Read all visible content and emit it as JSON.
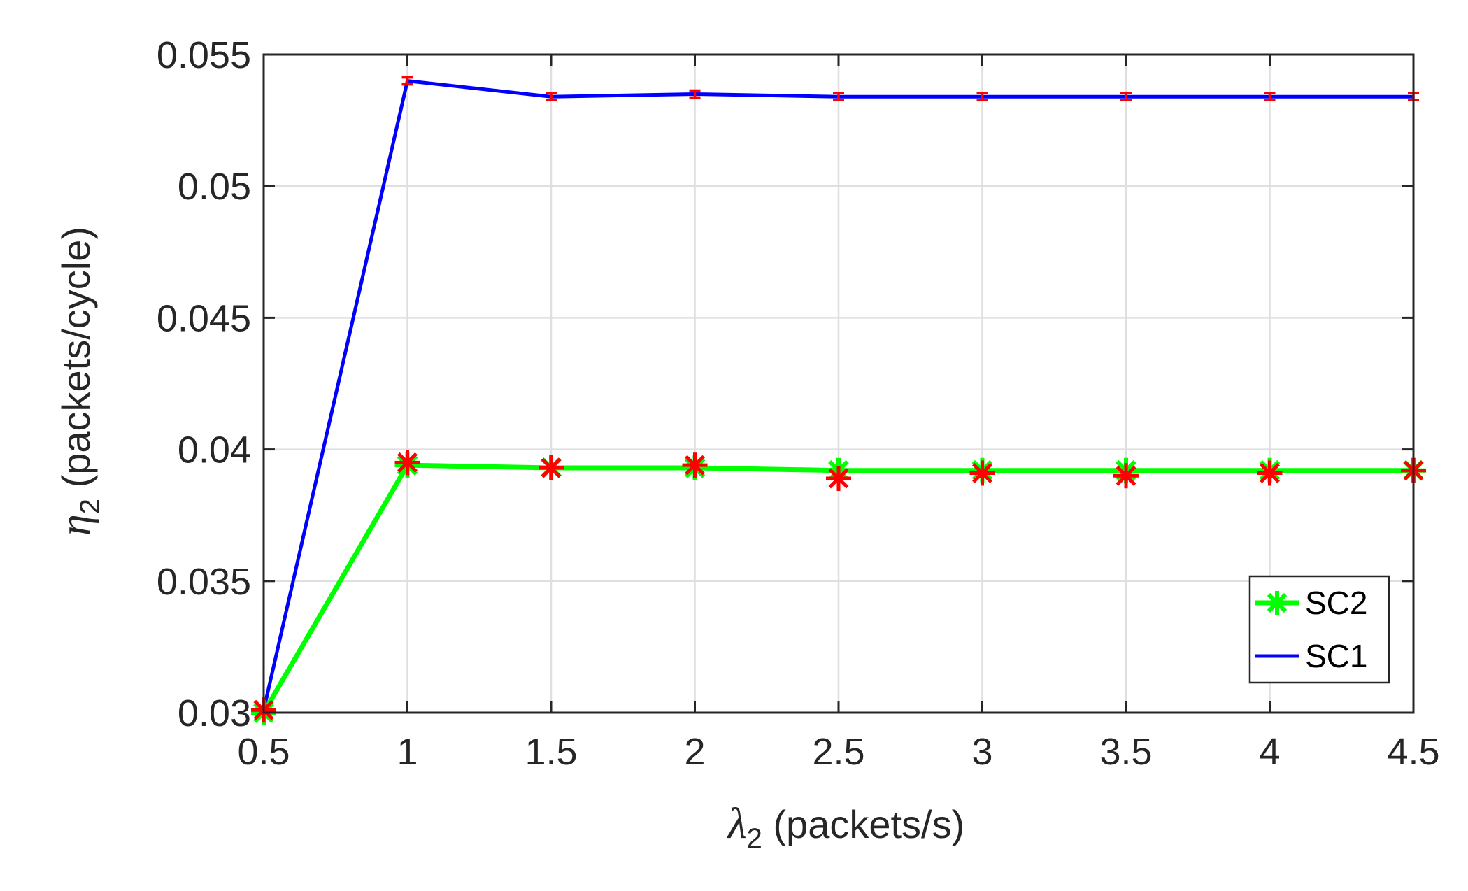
{
  "chart_data": {
    "type": "line",
    "xlabel": {
      "symbol": "λ",
      "subscript": "2",
      "unit": " (packets/s)"
    },
    "ylabel": {
      "symbol": "η",
      "subscript": "2",
      "unit": " (packets/cycle)"
    },
    "xlim": [
      0.5,
      4.5
    ],
    "ylim": [
      0.03,
      0.055
    ],
    "x_ticks": [
      0.5,
      1,
      1.5,
      2,
      2.5,
      3,
      3.5,
      4,
      4.5
    ],
    "x_tick_labels": [
      "0.5",
      "1",
      "1.5",
      "2",
      "2.5",
      "3",
      "3.5",
      "4",
      "4.5"
    ],
    "y_ticks": [
      0.03,
      0.035,
      0.04,
      0.045,
      0.05,
      0.055
    ],
    "y_tick_labels": [
      "0.03",
      "0.035",
      "0.04",
      "0.045",
      "0.05",
      "0.055"
    ],
    "grid": true,
    "legend_position": "bottom-right",
    "x": [
      0.5,
      1,
      1.5,
      2,
      2.5,
      3,
      3.5,
      4,
      4.5
    ],
    "series": [
      {
        "name": "SC2",
        "color": "#00ff00",
        "marker": "asterisk",
        "values": [
          0.03,
          0.0394,
          0.0393,
          0.0393,
          0.0392,
          0.0392,
          0.0392,
          0.0392,
          0.0392
        ],
        "overlay_marker": {
          "color": "#ff0000",
          "marker": "asterisk",
          "values": [
            0.0301,
            0.0395,
            0.0393,
            0.0394,
            0.0389,
            0.0391,
            0.039,
            0.0391,
            0.0392
          ]
        }
      },
      {
        "name": "SC1",
        "color": "#0000ff",
        "marker": "none",
        "values": [
          0.0301,
          0.054,
          0.0534,
          0.0535,
          0.0534,
          0.0534,
          0.0534,
          0.0534,
          0.0534
        ],
        "overlay_marker": {
          "color": "#ff0000",
          "marker": "errorbar",
          "values": [
            0.0301,
            0.054,
            0.0534,
            0.0535,
            0.0534,
            0.0534,
            0.0534,
            0.0534,
            0.0534
          ]
        }
      }
    ]
  }
}
